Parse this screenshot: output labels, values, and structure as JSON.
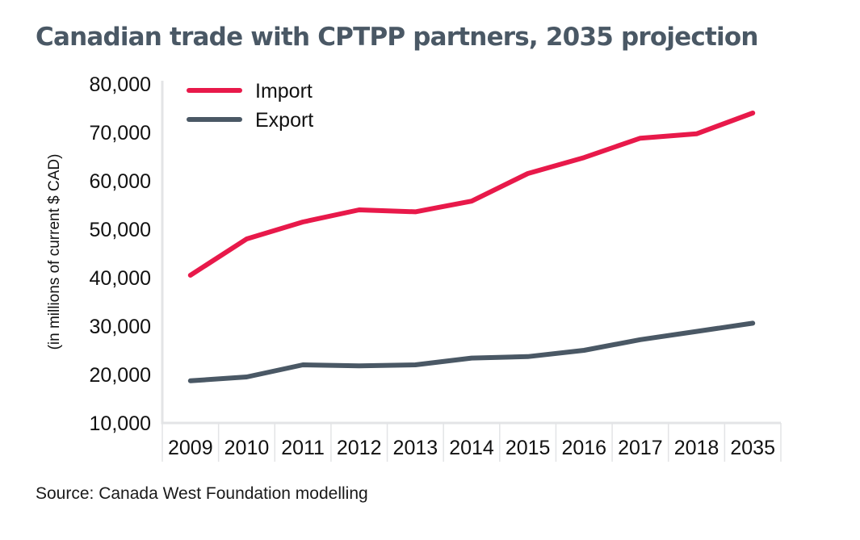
{
  "chart_data": {
    "type": "line",
    "title": "Canadian trade with CPTPP partners, 2035 projection",
    "xlabel": "",
    "ylabel": "(in millions of current $ CAD)",
    "ylim": [
      10000,
      80000
    ],
    "yticks": [
      80000,
      70000,
      60000,
      50000,
      40000,
      30000,
      20000,
      10000
    ],
    "ytick_labels": [
      "80,000",
      "70,000",
      "60,000",
      "50,000",
      "40,000",
      "30,000",
      "20,000",
      "10,000"
    ],
    "categories": [
      "2009",
      "2010",
      "2011",
      "2012",
      "2013",
      "2014",
      "2015",
      "2016",
      "2017",
      "2018",
      "2035"
    ],
    "series": [
      {
        "name": "Import",
        "color": "#e8194a",
        "values": [
          40500,
          48000,
          51500,
          54000,
          53600,
          55800,
          61500,
          64800,
          68800,
          69700,
          74000
        ]
      },
      {
        "name": "Export",
        "color": "#4a5865",
        "values": [
          18700,
          19500,
          22000,
          21800,
          22000,
          23400,
          23700,
          25000,
          27200,
          28900,
          30600
        ]
      }
    ],
    "legend": "top-left",
    "grid": false,
    "source": "Source: Canada West Foundation modelling"
  }
}
